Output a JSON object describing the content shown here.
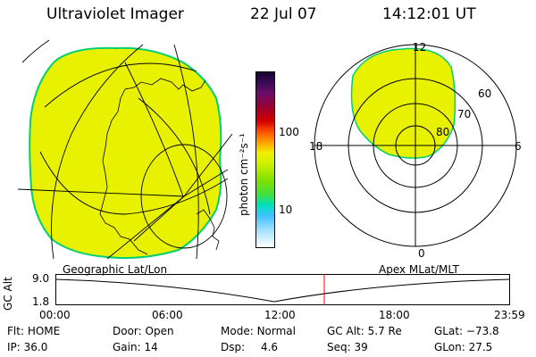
{
  "header": {
    "instrument": "Ultraviolet Imager",
    "date": "22 Jul 07",
    "time": "14:12:01 UT"
  },
  "colorbar": {
    "unit_label": "photon cm⁻²s⁻¹",
    "ticks": [
      {
        "label": "100",
        "value": 100
      },
      {
        "label": "10",
        "value": 10
      }
    ],
    "colors": [
      "#1a0033",
      "#3a0a55",
      "#6a0d6a",
      "#9b0030",
      "#d40000",
      "#ff5000",
      "#ffa000",
      "#f0f000",
      "#b0f000",
      "#40e040",
      "#00e0c0",
      "#40c0ff",
      "#a0e0ff",
      "#ffffff"
    ]
  },
  "left_map": {
    "projection_label": "Geographic Lat/Lon",
    "fill_color": "#e8f200",
    "edge_color": "#00d070"
  },
  "right_map": {
    "projection_label": "Apex MLat/MLT",
    "mlt_labels": {
      "top": "12",
      "left": "18",
      "right": "6",
      "bottom": "0"
    },
    "lat_labels": [
      "60",
      "70",
      "80"
    ],
    "fill_color": "#e8f200"
  },
  "timeline": {
    "axis_label": "GC Alt",
    "y_ticks": [
      "9.0",
      "1.8"
    ],
    "time_ticks": [
      "00:00",
      "06:00",
      "12:00",
      "18:00",
      "23:59"
    ],
    "current_time_marker": "14:12",
    "marker_color": "#ff0000"
  },
  "info": {
    "flt_label": "Flt:",
    "flt_value": "HOME",
    "ip_label": "IP:",
    "ip_value": "36.0",
    "door_label": "Door:",
    "door_value": "Open",
    "gain_label": "Gain:",
    "gain_value": "14",
    "mode_label": "Mode:",
    "mode_value": "Normal",
    "dsp_label": "Dsp:",
    "dsp_value": "4.6",
    "gcalt_label": "GC Alt:",
    "gcalt_value": "5.7 Re",
    "seq_label": "Seq:",
    "seq_value": "39",
    "glat_label": "GLat:",
    "glat_value": "−73.8",
    "glon_label": "GLon:",
    "glon_value": "27.5"
  }
}
